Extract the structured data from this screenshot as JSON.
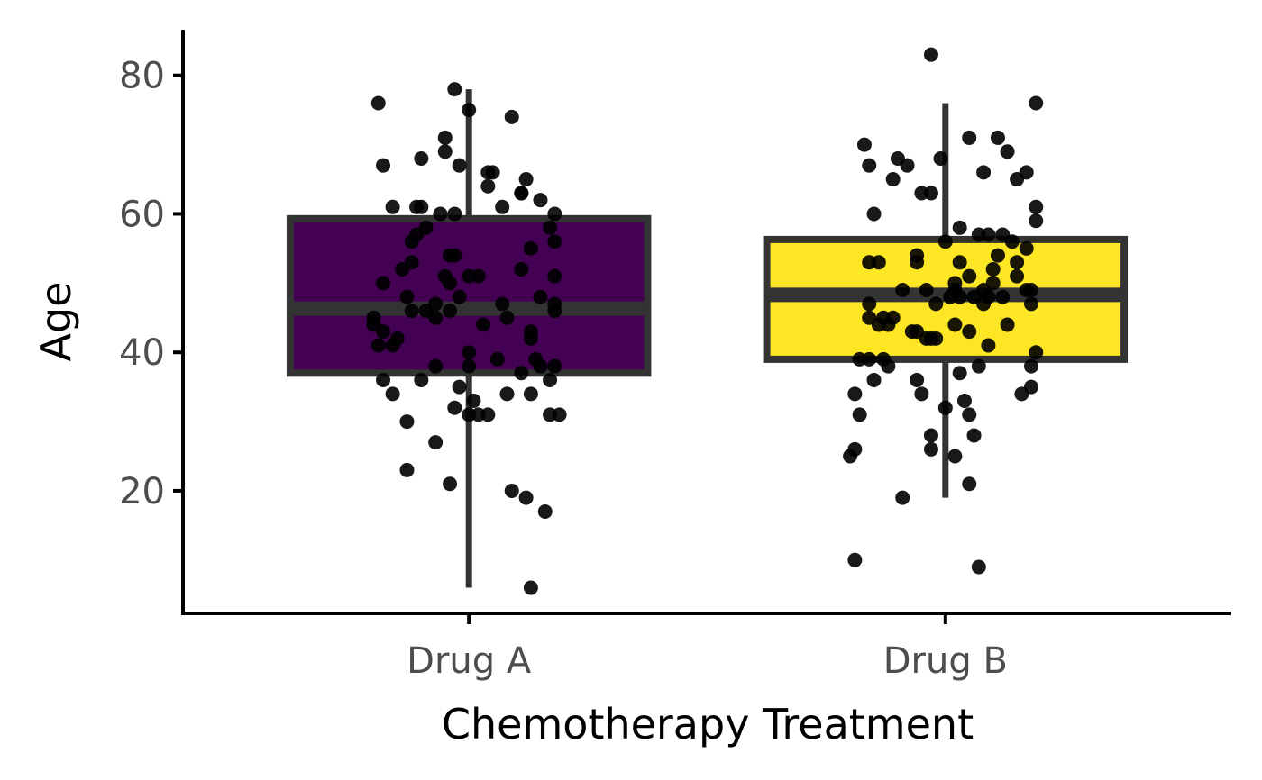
{
  "chart_data": {
    "type": "boxplot",
    "xlabel": "Chemotherapy Treatment",
    "ylabel": "Age",
    "categories": [
      "Drug A",
      "Drug B"
    ],
    "ylim": [
      2.3,
      86.6
    ],
    "xlim": [
      0.4,
      2.6
    ],
    "yticks": [
      20,
      40,
      60,
      80
    ],
    "grid": false,
    "legend": "none",
    "box_width": 0.75,
    "outline_color": "#333333",
    "point_color": "#000000",
    "boxes": [
      {
        "category": "Drug A",
        "fill": "#440154",
        "whisker_low": 6,
        "q1": 37,
        "median": 46.3,
        "q3": 59.3,
        "whisker_high": 78
      },
      {
        "category": "Drug B",
        "fill": "#FDE725",
        "whisker_low": 19,
        "q1": 39,
        "median": 48.3,
        "q3": 56.3,
        "whisker_high": 76
      }
    ],
    "points": [
      {
        "category": "Drug A",
        "jitter": [
          -0.19,
          -0.03,
          0.0,
          0.09,
          -0.18,
          -0.05,
          -0.1,
          -0.05,
          -0.02,
          0.04,
          0.05,
          0.04,
          0.12,
          0.11,
          0.11,
          0.07,
          0.15,
          -0.16,
          -0.11,
          -0.1,
          -0.06,
          -0.03,
          0.18,
          -0.11,
          -0.09,
          -0.12,
          0.17,
          0.18,
          0.13,
          -0.14,
          -0.12,
          -0.04,
          -0.03,
          -0.18,
          -0.05,
          0.0,
          0.02,
          -0.04,
          0.11,
          0.18,
          -0.13,
          -0.02,
          0.15,
          -0.07,
          -0.12,
          -0.09,
          -0.04,
          0.07,
          0.18,
          0.18,
          -0.2,
          -0.2,
          -0.07,
          0.03,
          0.08,
          0.13,
          -0.18,
          -0.15,
          -0.16,
          -0.19,
          0.13,
          0.14,
          0.0,
          0.06,
          -0.07,
          0.0,
          0.15,
          0.18,
          -0.18,
          -0.1,
          0.11,
          0.17,
          -0.02,
          -0.16,
          0.01,
          -0.03,
          0.0,
          0.02,
          0.04,
          0.17,
          0.19,
          0.08,
          0.13,
          -0.13,
          -0.07,
          -0.13,
          -0.04,
          0.09,
          0.12,
          0.16,
          0.13
        ],
        "age": [
          76,
          78,
          75,
          74,
          67,
          71,
          68,
          69,
          67,
          66,
          66,
          64,
          65,
          63,
          63,
          61,
          62,
          61,
          61,
          61,
          60,
          60,
          60,
          57,
          58,
          56,
          58,
          56,
          55,
          52,
          53,
          54,
          54,
          50,
          51,
          51,
          51,
          50,
          52,
          51,
          48,
          48,
          48,
          47,
          46,
          46,
          46,
          47,
          47,
          46,
          45,
          44,
          45,
          44,
          45,
          43,
          43,
          42,
          41,
          41,
          42,
          39,
          40,
          39,
          38,
          38,
          38,
          38,
          36,
          36,
          37,
          36,
          35,
          34,
          33,
          32,
          31,
          31,
          31,
          31,
          31,
          34,
          34,
          30,
          27,
          23,
          21,
          20,
          19,
          17,
          6
        ]
      },
      {
        "category": "Drug B",
        "jitter": [
          -0.03,
          0.19,
          -0.17,
          0.05,
          0.11,
          -0.1,
          -0.08,
          -0.01,
          -0.16,
          0.13,
          0.08,
          0.17,
          0.15,
          -0.11,
          -0.05,
          -0.03,
          -0.15,
          0.19,
          0.19,
          0.03,
          0.12,
          0.0,
          0.07,
          0.09,
          0.14,
          0.17,
          -0.06,
          -0.16,
          -0.14,
          -0.06,
          0.11,
          0.15,
          0.1,
          0.03,
          0.05,
          0.15,
          0.1,
          0.02,
          0.08,
          0.17,
          -0.09,
          -0.04,
          0.02,
          0.09,
          0.01,
          0.03,
          0.06,
          0.12,
          0.18,
          -0.16,
          0.08,
          0.18,
          -0.02,
          -0.11,
          -0.16,
          -0.13,
          -0.14,
          -0.12,
          0.02,
          0.13,
          -0.06,
          -0.07,
          0.05,
          -0.04,
          -0.03,
          -0.02,
          0.09,
          0.19,
          -0.18,
          -0.16,
          -0.13,
          -0.12,
          0.07,
          0.18,
          0.03,
          -0.15,
          -0.06,
          0.18,
          -0.19,
          0.16,
          -0.05,
          0.04,
          0.0,
          -0.18,
          0.05,
          -0.03,
          0.06,
          -0.03,
          -0.19,
          -0.2,
          0.02,
          0.05,
          -0.09,
          -0.19,
          0.07
        ],
        "age": [
          83,
          76,
          70,
          71,
          71,
          68,
          67,
          68,
          67,
          69,
          66,
          66,
          65,
          65,
          63,
          63,
          60,
          61,
          59,
          58,
          57,
          56,
          57,
          57,
          56,
          55,
          54,
          53,
          53,
          53,
          54,
          53,
          52,
          53,
          51,
          51,
          50,
          50,
          49,
          49,
          49,
          49,
          49,
          48,
          48,
          48,
          48,
          48,
          49,
          47,
          47,
          47,
          47,
          45,
          45,
          45,
          44,
          44,
          44,
          44,
          43,
          43,
          43,
          42,
          42,
          42,
          41,
          40,
          39,
          39,
          39,
          38,
          38,
          38,
          37,
          36,
          36,
          35,
          34,
          34,
          34,
          33,
          32,
          31,
          31,
          28,
          28,
          26,
          26,
          25,
          25,
          21,
          19,
          10,
          9
        ]
      }
    ]
  }
}
